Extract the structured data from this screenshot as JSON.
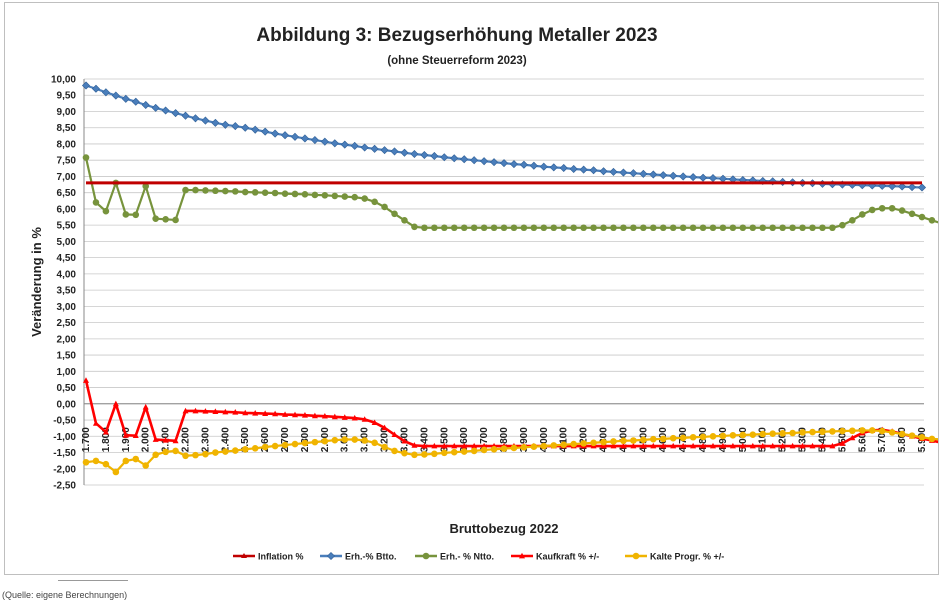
{
  "chart_data": {
    "type": "line",
    "title": "Abbildung 3: Bezugserhöhung Metaller 2023",
    "subtitle": "(ohne Steuerreform 2023)",
    "xlabel": "Bruttobezug 2022",
    "ylabel": "Veränderung in %",
    "ylim": [
      -2.5,
      10.0
    ],
    "ytick_step": 0.5,
    "grid": true,
    "legend_position": "bottom",
    "x_start": 1700,
    "x_step": 50,
    "x_count": 85,
    "x_tick_every": 2,
    "series": [
      {
        "name": "Inflation %",
        "color": "#c00000",
        "marker": "none",
        "values": "const:6.8"
      },
      {
        "name": "Erh.-% Btto.",
        "color": "#4a7ebb",
        "marker": "diamond",
        "values": [
          9.8,
          9.7,
          9.59,
          9.49,
          9.39,
          9.3,
          9.2,
          9.11,
          9.03,
          8.95,
          8.87,
          8.79,
          8.72,
          8.65,
          8.59,
          8.55,
          8.5,
          8.44,
          8.38,
          8.32,
          8.27,
          8.22,
          8.17,
          8.12,
          8.07,
          8.02,
          7.98,
          7.94,
          7.89,
          7.85,
          7.81,
          7.77,
          7.73,
          7.69,
          7.66,
          7.63,
          7.59,
          7.56,
          7.53,
          7.5,
          7.47,
          7.44,
          7.41,
          7.38,
          7.36,
          7.33,
          7.3,
          7.28,
          7.26,
          7.23,
          7.21,
          7.19,
          7.16,
          7.14,
          7.12,
          7.1,
          7.08,
          7.06,
          7.04,
          7.02,
          7.0,
          6.98,
          6.96,
          6.95,
          6.93,
          6.91,
          6.89,
          6.88,
          6.86,
          6.85,
          6.83,
          6.82,
          6.8,
          6.79,
          6.77,
          6.76,
          6.75,
          6.74,
          6.73,
          6.72,
          6.71,
          6.7,
          6.69,
          6.67,
          6.66
        ]
      },
      {
        "name": "Erh.- % Ntto.",
        "color": "#77933c",
        "marker": "circle",
        "values": [
          7.58,
          6.2,
          5.93,
          6.8,
          5.83,
          5.82,
          6.7,
          5.7,
          5.68,
          5.66,
          6.58,
          6.58,
          6.57,
          6.56,
          6.55,
          6.54,
          6.52,
          6.51,
          6.5,
          6.49,
          6.47,
          6.46,
          6.45,
          6.43,
          6.42,
          6.4,
          6.38,
          6.36,
          6.32,
          6.22,
          6.06,
          5.85,
          5.65,
          5.45,
          5.42,
          5.42,
          5.42,
          5.42,
          5.42,
          5.42,
          5.42,
          5.42,
          5.42,
          5.42,
          5.42,
          5.42,
          5.42,
          5.42,
          5.42,
          5.42,
          5.42,
          5.42,
          5.42,
          5.42,
          5.42,
          5.42,
          5.42,
          5.42,
          5.42,
          5.42,
          5.42,
          5.42,
          5.42,
          5.42,
          5.42,
          5.42,
          5.42,
          5.42,
          5.42,
          5.42,
          5.42,
          5.42,
          5.42,
          5.42,
          5.42,
          5.42,
          5.5,
          5.65,
          5.83,
          5.97,
          6.02,
          6.02,
          5.95,
          5.85,
          5.75,
          5.65,
          5.55
        ]
      },
      {
        "name": "Kaufkraft % +/-",
        "color": "#ff0000",
        "marker": "triangle",
        "values": [
          0.72,
          -0.6,
          -0.87,
          0.0,
          -0.97,
          -0.98,
          -0.1,
          -1.1,
          -1.12,
          -1.14,
          -0.22,
          -0.22,
          -0.23,
          -0.24,
          -0.25,
          -0.26,
          -0.28,
          -0.29,
          -0.3,
          -0.31,
          -0.33,
          -0.34,
          -0.35,
          -0.37,
          -0.38,
          -0.4,
          -0.42,
          -0.44,
          -0.48,
          -0.58,
          -0.74,
          -0.95,
          -1.15,
          -1.28,
          -1.3,
          -1.3,
          -1.3,
          -1.3,
          -1.3,
          -1.3,
          -1.3,
          -1.3,
          -1.3,
          -1.3,
          -1.3,
          -1.3,
          -1.3,
          -1.3,
          -1.3,
          -1.3,
          -1.3,
          -1.3,
          -1.3,
          -1.3,
          -1.3,
          -1.3,
          -1.3,
          -1.3,
          -1.3,
          -1.3,
          -1.3,
          -1.3,
          -1.3,
          -1.3,
          -1.3,
          -1.3,
          -1.3,
          -1.3,
          -1.3,
          -1.3,
          -1.3,
          -1.3,
          -1.3,
          -1.3,
          -1.3,
          -1.3,
          -1.22,
          -1.05,
          -0.9,
          -0.82,
          -0.8,
          -0.85,
          -0.93,
          -1.0,
          -1.07,
          -1.13,
          -1.2
        ]
      },
      {
        "name": "Kalte Progr. % +/-",
        "color": "#f0b400",
        "marker": "circle",
        "values": [
          -1.8,
          -1.76,
          -1.86,
          -2.1,
          -1.76,
          -1.7,
          -1.9,
          -1.57,
          -1.48,
          -1.45,
          -1.6,
          -1.58,
          -1.55,
          -1.5,
          -1.47,
          -1.44,
          -1.4,
          -1.37,
          -1.33,
          -1.3,
          -1.27,
          -1.24,
          -1.21,
          -1.18,
          -1.15,
          -1.12,
          -1.1,
          -1.1,
          -1.13,
          -1.2,
          -1.33,
          -1.45,
          -1.52,
          -1.57,
          -1.56,
          -1.54,
          -1.51,
          -1.49,
          -1.47,
          -1.45,
          -1.42,
          -1.4,
          -1.38,
          -1.36,
          -1.34,
          -1.32,
          -1.3,
          -1.28,
          -1.26,
          -1.24,
          -1.22,
          -1.2,
          -1.18,
          -1.16,
          -1.14,
          -1.13,
          -1.11,
          -1.09,
          -1.08,
          -1.06,
          -1.05,
          -1.03,
          -1.02,
          -1.0,
          -0.99,
          -0.97,
          -0.96,
          -0.95,
          -0.93,
          -0.92,
          -0.91,
          -0.9,
          -0.88,
          -0.87,
          -0.86,
          -0.85,
          -0.84,
          -0.83,
          -0.82,
          -0.82,
          -0.84,
          -0.88,
          -0.93,
          -0.98,
          -1.03,
          -1.08,
          -1.1
        ]
      }
    ]
  },
  "source_note": "(Quelle: eigene Berechnungen)"
}
